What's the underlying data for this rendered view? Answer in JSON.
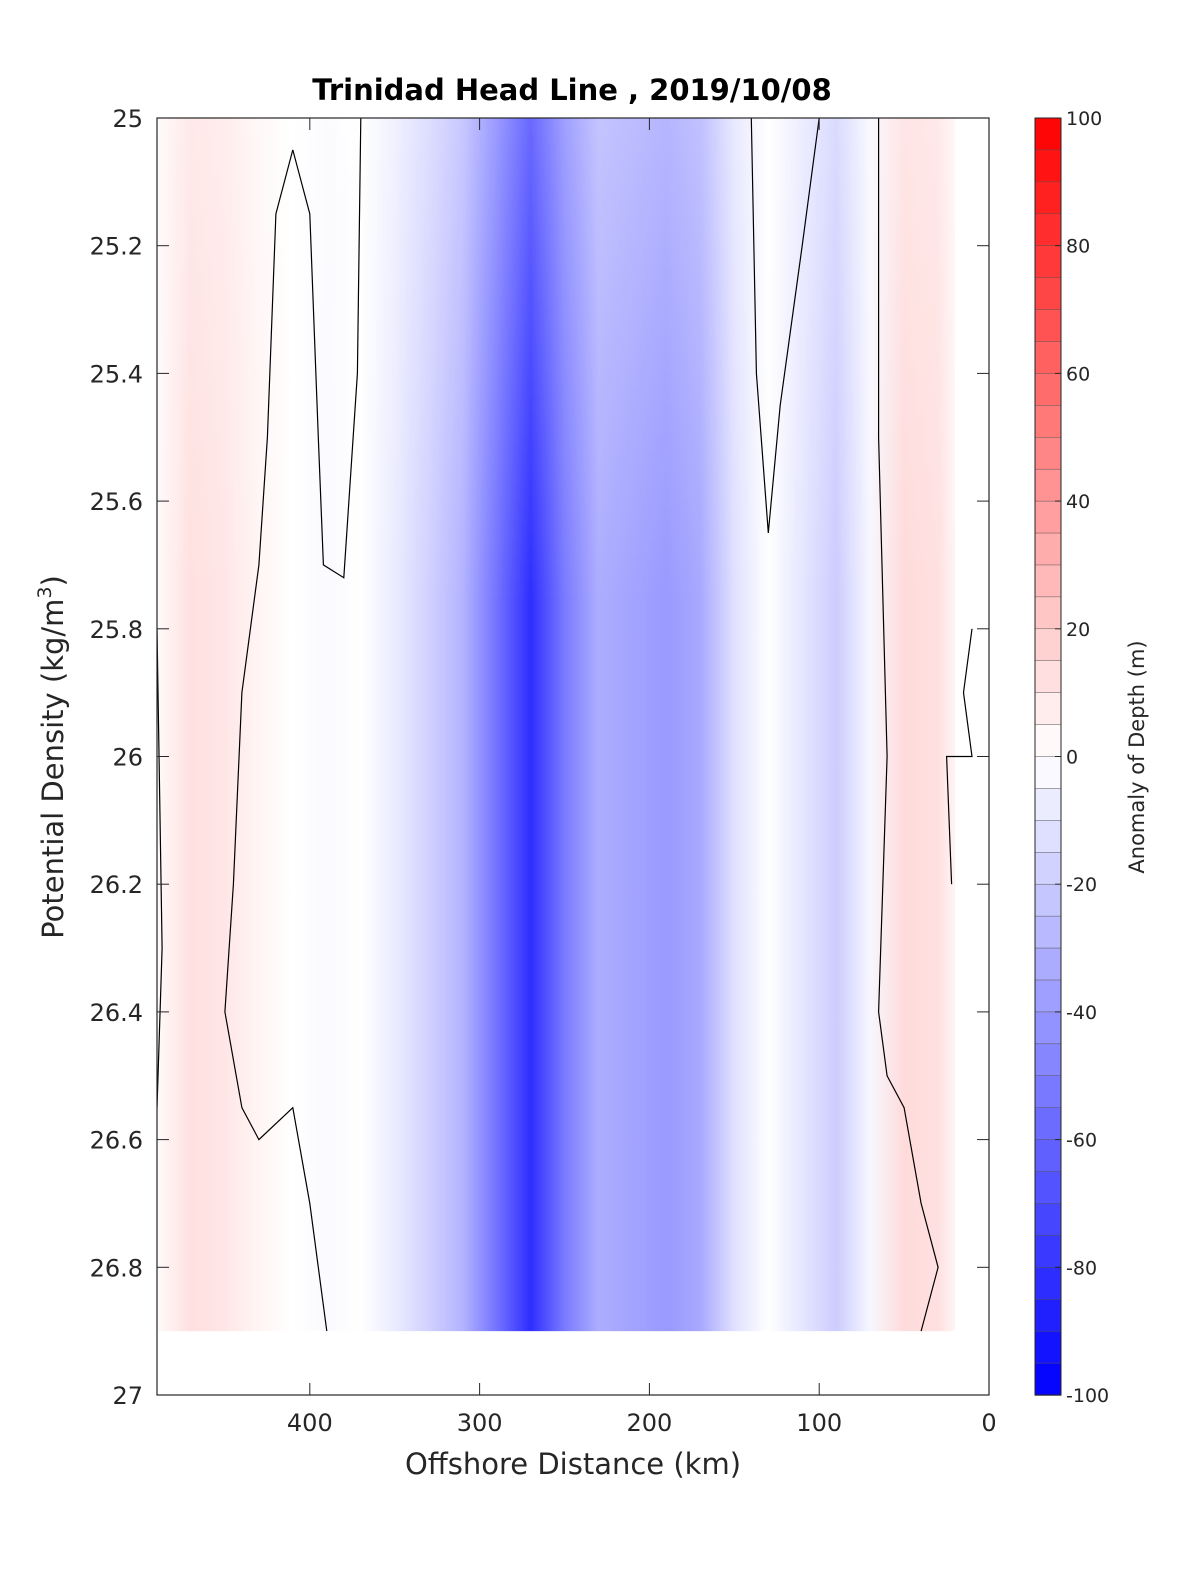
{
  "chart_data": {
    "type": "heatmap",
    "title": "Trinidad Head Line , 2019/10/08",
    "xlabel": "Offshore Distance (km)",
    "ylabel": "Potential Density (kg/m3)",
    "ylabel_main": "Potential Density (kg/m",
    "ylabel_sup": "3",
    "ylabel_tail": ")",
    "colorbar_label": "Anomaly of Depth (m)",
    "xlim": [
      490,
      0
    ],
    "ylim": [
      25,
      27
    ],
    "x_reversed": true,
    "y_reversed": true,
    "xticks": [
      400,
      300,
      200,
      100,
      0
    ],
    "xtick_labels": [
      "400",
      "300",
      "200",
      "100",
      "0"
    ],
    "yticks": [
      25,
      25.2,
      25.4,
      25.6,
      25.8,
      26,
      26.2,
      26.4,
      26.6,
      26.8,
      27
    ],
    "ytick_labels": [
      "25",
      "25.2",
      "25.4",
      "25.6",
      "25.8",
      "26",
      "26.2",
      "26.4",
      "26.6",
      "26.8",
      "27"
    ],
    "colorbar_range": [
      -100,
      100
    ],
    "colorbar_ticks": [
      100,
      80,
      60,
      40,
      20,
      0,
      -20,
      -40,
      -60,
      -80,
      -100
    ],
    "colorbar_tick_labels": [
      "100",
      "80",
      "60",
      "40",
      "20",
      "0",
      "-20",
      "-40",
      "-60",
      "-80",
      "-100"
    ],
    "colorbar_levels": 40,
    "colormap": {
      "negative": "#0000ff",
      "zero": "#ffffff",
      "positive": "#ff0000"
    },
    "data_extent": {
      "x": [
        490,
        20
      ],
      "y": [
        25,
        26.9
      ]
    },
    "grid_x_km": [
      490,
      470,
      450,
      430,
      410,
      390,
      370,
      350,
      330,
      310,
      290,
      270,
      250,
      230,
      210,
      190,
      170,
      150,
      130,
      110,
      90,
      70,
      50,
      30,
      20
    ],
    "grid_y_density": [
      25.0,
      25.1,
      25.2,
      25.3,
      25.4,
      25.5,
      25.6,
      25.7,
      25.8,
      25.9,
      26.0,
      26.1,
      26.2,
      26.3,
      26.4,
      26.5,
      26.6,
      26.7,
      26.8,
      26.9
    ],
    "depth_anomaly_profile_m": [
      2,
      12,
      10,
      4,
      0,
      -2,
      0,
      -8,
      -18,
      -30,
      -55,
      -82,
      -52,
      -32,
      -36,
      -40,
      -34,
      -12,
      0,
      -10,
      -20,
      -3,
      14,
      12,
      4
    ],
    "zero_contour": [
      {
        "name": "western-edge",
        "points": [
          [
            490,
            25.8
          ],
          [
            487,
            26.3
          ],
          [
            490,
            26.55
          ]
        ]
      },
      {
        "name": "western-lobe",
        "points": [
          [
            410,
            25.05
          ],
          [
            420,
            25.15
          ],
          [
            425,
            25.5
          ],
          [
            430,
            25.7
          ],
          [
            440,
            25.9
          ],
          [
            445,
            26.2
          ],
          [
            450,
            26.4
          ],
          [
            440,
            26.55
          ],
          [
            430,
            26.6
          ],
          [
            410,
            26.55
          ],
          [
            400,
            26.7
          ],
          [
            395,
            26.8
          ],
          [
            390,
            26.9
          ]
        ]
      },
      {
        "name": "western-lobe-east",
        "points": [
          [
            410,
            25.05
          ],
          [
            400,
            25.15
          ],
          [
            395,
            25.5
          ],
          [
            392,
            25.7
          ],
          [
            380,
            25.72
          ],
          [
            372,
            25.4
          ],
          [
            370,
            25.0
          ]
        ]
      },
      {
        "name": "eastern-lobe",
        "points": [
          [
            140,
            25.0
          ],
          [
            137,
            25.4
          ],
          [
            130,
            25.65
          ],
          [
            123,
            25.45
          ],
          [
            110,
            25.2
          ],
          [
            100,
            25.0
          ]
        ]
      },
      {
        "name": "coastal-boundary",
        "points": [
          [
            65,
            25.0
          ],
          [
            65,
            25.5
          ],
          [
            60,
            26.0
          ],
          [
            65,
            26.4
          ],
          [
            60,
            26.5
          ],
          [
            50,
            26.55
          ],
          [
            40,
            26.7
          ],
          [
            30,
            26.8
          ],
          [
            40,
            26.9
          ]
        ]
      },
      {
        "name": "nearshore",
        "points": [
          [
            10,
            25.8
          ],
          [
            15,
            25.9
          ],
          [
            10,
            26.0
          ],
          [
            25,
            26.0
          ],
          [
            22,
            26.2
          ]
        ]
      }
    ]
  }
}
